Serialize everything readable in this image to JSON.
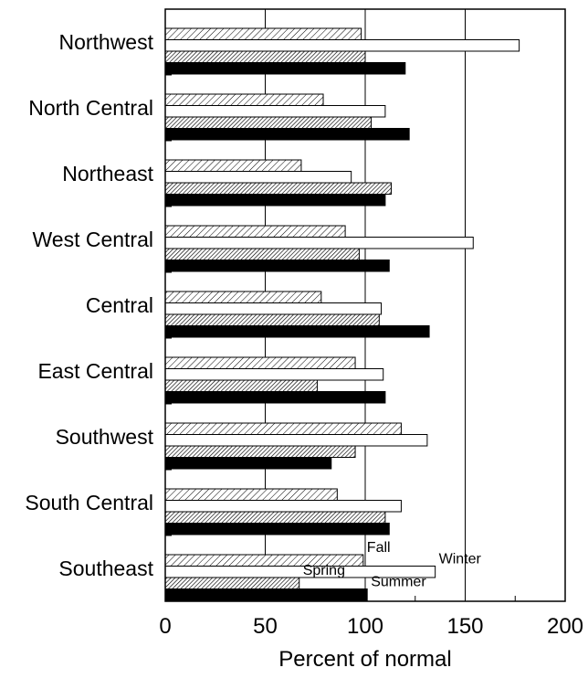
{
  "chart_data": {
    "type": "bar",
    "orientation": "horizontal",
    "categories": [
      "Northwest",
      "North Central",
      "Northeast",
      "West Central",
      "Central",
      "East Central",
      "Southwest",
      "South Central",
      "Southeast"
    ],
    "series": [
      {
        "name": "Fall",
        "style": "hatch-light",
        "values": [
          98,
          79,
          68,
          90,
          78,
          95,
          118,
          86,
          99
        ]
      },
      {
        "name": "Winter",
        "style": "white",
        "values": [
          177,
          110,
          93,
          154,
          108,
          109,
          131,
          118,
          135
        ]
      },
      {
        "name": "Spring",
        "style": "hatch-dense",
        "values": [
          100,
          103,
          113,
          97,
          107,
          76,
          95,
          110,
          67
        ]
      },
      {
        "name": "Summer",
        "style": "black",
        "values": [
          120,
          122,
          110,
          112,
          132,
          110,
          83,
          112,
          101
        ]
      }
    ],
    "xlabel": "Percent of normal",
    "xlim": [
      0,
      200
    ],
    "xticks": [
      0,
      50,
      100,
      150,
      200
    ],
    "grid": "vertical",
    "legend": "inside-bottom (labels next to Southeast bars)"
  }
}
